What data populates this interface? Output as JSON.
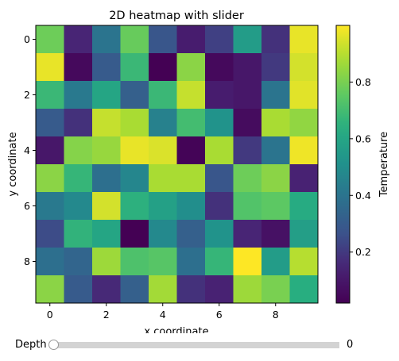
{
  "chart_data": {
    "type": "heatmap",
    "title": "2D heatmap with slider",
    "xlabel": "x coordinate",
    "ylabel": "y coordinate",
    "x_ticks": [
      0,
      2,
      4,
      6,
      8
    ],
    "y_ticks": [
      0,
      2,
      4,
      6,
      8
    ],
    "colorbar": {
      "label": "Temperature",
      "ticks": [
        "0.2",
        "0.4",
        "0.6",
        "0.8"
      ],
      "range": [
        0.02,
        1.0
      ]
    },
    "colormap": "viridis",
    "values": [
      [
        0.78,
        0.15,
        0.4,
        0.77,
        0.28,
        0.12,
        0.22,
        0.56,
        0.18,
        0.97
      ],
      [
        0.97,
        0.05,
        0.3,
        0.68,
        0.02,
        0.83,
        0.05,
        0.1,
        0.2,
        0.94
      ],
      [
        0.68,
        0.42,
        0.6,
        0.32,
        0.68,
        0.92,
        0.12,
        0.1,
        0.4,
        0.96
      ],
      [
        0.3,
        0.18,
        0.92,
        0.88,
        0.45,
        0.7,
        0.52,
        0.06,
        0.88,
        0.84
      ],
      [
        0.1,
        0.82,
        0.85,
        0.97,
        0.95,
        0.03,
        0.88,
        0.2,
        0.4,
        0.98
      ],
      [
        0.83,
        0.67,
        0.38,
        0.47,
        0.88,
        0.88,
        0.28,
        0.78,
        0.83,
        0.14
      ],
      [
        0.42,
        0.48,
        0.94,
        0.65,
        0.58,
        0.5,
        0.18,
        0.73,
        0.75,
        0.63
      ],
      [
        0.25,
        0.66,
        0.6,
        0.02,
        0.48,
        0.32,
        0.52,
        0.15,
        0.08,
        0.57
      ],
      [
        0.38,
        0.34,
        0.86,
        0.72,
        0.74,
        0.38,
        0.67,
        1.0,
        0.56,
        0.9
      ],
      [
        0.83,
        0.3,
        0.16,
        0.32,
        0.87,
        0.18,
        0.14,
        0.86,
        0.8,
        0.64
      ]
    ]
  },
  "slider": {
    "label": "Depth",
    "value": "0",
    "fraction": 0
  }
}
